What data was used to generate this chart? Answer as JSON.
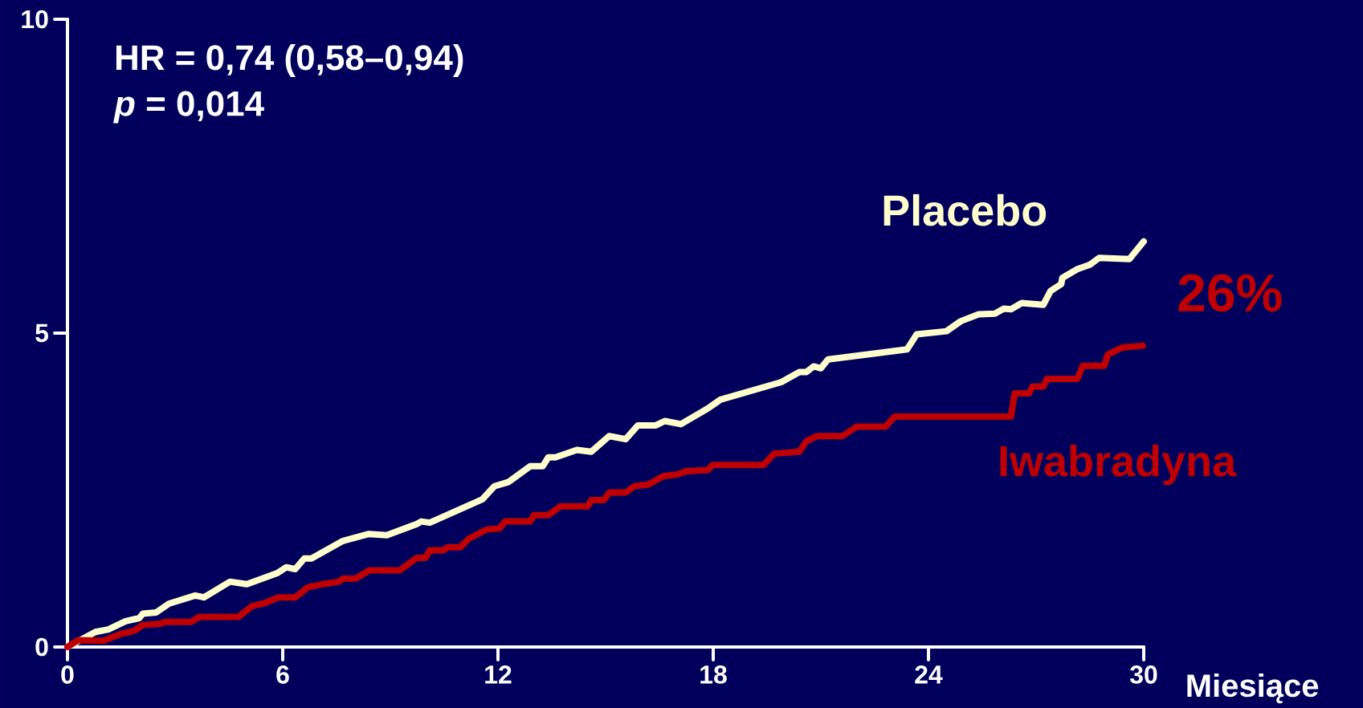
{
  "chart_data": {
    "type": "line",
    "xlabel": "Miesiące",
    "xlim": [
      0,
      30
    ],
    "ylim": [
      0,
      10
    ],
    "xticks": [
      0,
      6,
      12,
      18,
      24,
      30
    ],
    "yticks": [
      0,
      5,
      10
    ],
    "grid": false,
    "marker": "none",
    "line_style": "solid",
    "annotations": [
      "HR = 0,74 (0,58–0,94)",
      "*p* = 0,014",
      "26%"
    ],
    "series": [
      {
        "name": "Placebo",
        "color": "#ffffcc",
        "x": [
          0,
          0.78,
          1.14,
          1.62,
          2.0,
          2.1,
          2.47,
          2.83,
          3.56,
          3.8,
          4.53,
          5.0,
          5.86,
          6.1,
          6.35,
          6.6,
          6.8,
          7.68,
          8.4,
          8.9,
          9.74,
          9.86,
          10.1,
          11.56,
          11.9,
          12.3,
          12.9,
          13.25,
          13.4,
          13.6,
          14.2,
          14.6,
          15.1,
          15.56,
          15.9,
          16.4,
          16.65,
          17.1,
          17.85,
          18.2,
          19.9,
          20.4,
          20.6,
          20.8,
          21.0,
          21.2,
          23.4,
          23.67,
          24.5,
          24.9,
          25.4,
          25.85,
          26.1,
          26.3,
          26.6,
          27.2,
          27.4,
          27.7,
          27.73,
          28.15,
          28.5,
          28.76,
          29.6,
          30
        ],
        "values": [
          0,
          0.24,
          0.28,
          0.41,
          0.46,
          0.53,
          0.55,
          0.69,
          0.82,
          0.79,
          1.04,
          1.0,
          1.18,
          1.27,
          1.24,
          1.41,
          1.41,
          1.69,
          1.8,
          1.78,
          1.96,
          2.0,
          1.98,
          2.35,
          2.56,
          2.63,
          2.88,
          2.88,
          3.02,
          3.02,
          3.14,
          3.11,
          3.36,
          3.31,
          3.53,
          3.53,
          3.6,
          3.55,
          3.8,
          3.94,
          4.22,
          4.38,
          4.38,
          4.47,
          4.44,
          4.58,
          4.74,
          4.98,
          5.03,
          5.19,
          5.3,
          5.31,
          5.39,
          5.38,
          5.48,
          5.45,
          5.67,
          5.78,
          5.88,
          6.02,
          6.09,
          6.2,
          6.18,
          6.46
        ]
      },
      {
        "name": "Iwabradyna",
        "color": "#c00000",
        "x": [
          0,
          0.3,
          1.0,
          1.5,
          1.87,
          2.1,
          2.6,
          2.7,
          3.44,
          3.68,
          4.77,
          5.14,
          5.5,
          5.87,
          6.35,
          6.7,
          7.1,
          7.56,
          7.68,
          8.04,
          8.4,
          9.26,
          9.74,
          9.98,
          10.1,
          10.47,
          10.6,
          10.95,
          11.2,
          11.68,
          12.04,
          12.2,
          12.9,
          13.0,
          13.4,
          13.74,
          14.5,
          14.6,
          14.95,
          15.1,
          15.56,
          15.8,
          16.2,
          16.6,
          17.0,
          17.25,
          17.85,
          17.98,
          19.4,
          19.7,
          20.4,
          20.6,
          20.9,
          21.6,
          22.0,
          22.8,
          23.06,
          26.3,
          26.4,
          26.8,
          26.9,
          27.2,
          27.3,
          28.15,
          28.3,
          28.9,
          29.0,
          29.4,
          29.97
        ],
        "values": [
          0,
          0.11,
          0.1,
          0.21,
          0.26,
          0.35,
          0.37,
          0.4,
          0.4,
          0.48,
          0.48,
          0.65,
          0.7,
          0.79,
          0.79,
          0.95,
          1.0,
          1.04,
          1.09,
          1.09,
          1.22,
          1.22,
          1.42,
          1.42,
          1.54,
          1.54,
          1.59,
          1.59,
          1.73,
          1.87,
          1.89,
          2.0,
          2.0,
          2.1,
          2.1,
          2.24,
          2.24,
          2.34,
          2.34,
          2.46,
          2.46,
          2.56,
          2.59,
          2.72,
          2.75,
          2.8,
          2.82,
          2.9,
          2.9,
          3.08,
          3.11,
          3.28,
          3.36,
          3.36,
          3.51,
          3.51,
          3.67,
          3.67,
          4.04,
          4.04,
          4.15,
          4.15,
          4.27,
          4.27,
          4.48,
          4.48,
          4.66,
          4.77,
          4.8
        ]
      }
    ]
  }
}
